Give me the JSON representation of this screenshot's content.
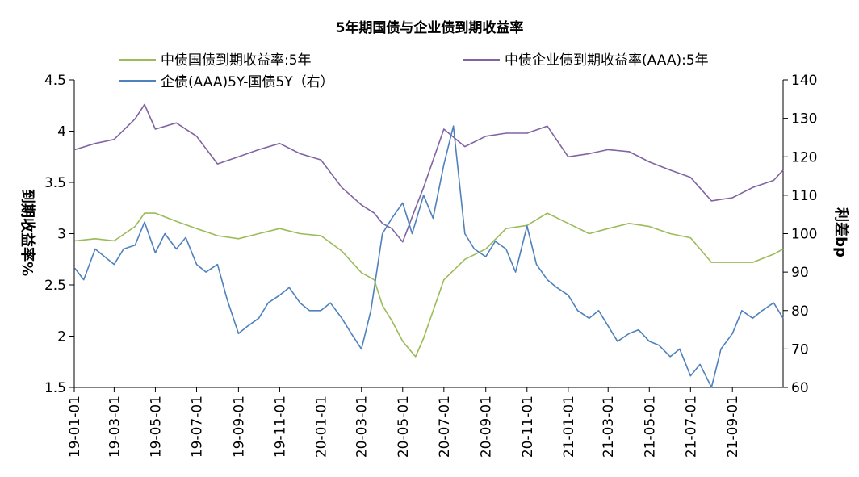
{
  "chart_data": {
    "type": "line",
    "title": "5年期国债与企业债到期收益率",
    "ylabel_left": "到期收益率%",
    "ylabel_right": "利差bp",
    "ylim_left": [
      1.5,
      4.5
    ],
    "yticks_left": [
      "1.5",
      "2",
      "2.5",
      "3",
      "3.5",
      "4",
      "4.5"
    ],
    "ylim_right": [
      60,
      140
    ],
    "yticks_right": [
      "60",
      "70",
      "80",
      "90",
      "100",
      "110",
      "120",
      "130",
      "140"
    ],
    "x_range": [
      "2019-01-01",
      "2021-11-15"
    ],
    "xticks": [
      "19-01-01",
      "19-03-01",
      "19-05-01",
      "19-07-01",
      "19-09-01",
      "19-11-01",
      "20-01-01",
      "20-03-01",
      "20-05-01",
      "20-07-01",
      "20-09-01",
      "20-11-01",
      "21-01-01",
      "21-03-01",
      "21-05-01",
      "21-07-01",
      "21-09-01"
    ],
    "legend_placement": "top",
    "grid": false,
    "series": [
      {
        "name": "中债国债到期收益率:5年",
        "axis": "left",
        "color": "#9BBB59",
        "x": [
          "2019-01-02",
          "2019-02-01",
          "2019-03-01",
          "2019-04-01",
          "2019-04-15",
          "2019-05-01",
          "2019-06-01",
          "2019-07-01",
          "2019-08-01",
          "2019-09-01",
          "2019-10-01",
          "2019-11-01",
          "2019-12-01",
          "2020-01-01",
          "2020-02-01",
          "2020-03-01",
          "2020-03-20",
          "2020-04-01",
          "2020-04-15",
          "2020-05-01",
          "2020-05-20",
          "2020-06-01",
          "2020-07-01",
          "2020-08-01",
          "2020-09-01",
          "2020-10-01",
          "2020-11-01",
          "2020-12-01",
          "2021-01-01",
          "2021-02-01",
          "2021-03-01",
          "2021-04-01",
          "2021-05-01",
          "2021-06-01",
          "2021-07-01",
          "2021-08-01",
          "2021-09-01",
          "2021-10-01",
          "2021-11-01",
          "2021-11-15"
        ],
        "values": [
          2.93,
          2.95,
          2.93,
          3.07,
          3.2,
          3.2,
          3.12,
          3.05,
          2.98,
          2.95,
          3.0,
          3.05,
          3.0,
          2.98,
          2.83,
          2.62,
          2.55,
          2.3,
          2.15,
          1.95,
          1.8,
          1.98,
          2.55,
          2.75,
          2.85,
          3.05,
          3.08,
          3.2,
          3.1,
          3.0,
          3.05,
          3.1,
          3.07,
          3.0,
          2.96,
          2.72,
          2.72,
          2.72,
          2.8,
          2.85
        ]
      },
      {
        "name": "中债企业债到期收益率(AAA):5年",
        "axis": "left",
        "color": "#8064A2",
        "x": [
          "2019-01-02",
          "2019-02-01",
          "2019-03-01",
          "2019-04-01",
          "2019-04-15",
          "2019-05-01",
          "2019-06-01",
          "2019-07-01",
          "2019-08-01",
          "2019-09-01",
          "2019-10-01",
          "2019-11-01",
          "2019-12-01",
          "2020-01-01",
          "2020-02-01",
          "2020-03-01",
          "2020-03-20",
          "2020-04-01",
          "2020-04-15",
          "2020-05-01",
          "2020-05-20",
          "2020-06-01",
          "2020-07-01",
          "2020-08-01",
          "2020-09-01",
          "2020-10-01",
          "2020-11-01",
          "2020-12-01",
          "2021-01-01",
          "2021-02-01",
          "2021-03-01",
          "2021-04-01",
          "2021-05-01",
          "2021-06-01",
          "2021-07-01",
          "2021-08-01",
          "2021-09-01",
          "2021-10-01",
          "2021-11-01",
          "2021-11-15"
        ],
        "values": [
          3.82,
          3.88,
          3.92,
          4.12,
          4.26,
          4.02,
          4.08,
          3.95,
          3.68,
          3.75,
          3.82,
          3.88,
          3.78,
          3.72,
          3.45,
          3.28,
          3.2,
          3.1,
          3.05,
          2.92,
          3.25,
          3.45,
          4.02,
          3.85,
          3.95,
          3.98,
          3.98,
          4.05,
          3.75,
          3.78,
          3.82,
          3.8,
          3.7,
          3.62,
          3.55,
          3.32,
          3.35,
          3.45,
          3.52,
          3.62
        ]
      },
      {
        "name": "企债(AAA)5Y-国债5Y（右）",
        "axis": "right",
        "color": "#4F81BD",
        "x": [
          "2019-01-02",
          "2019-01-15",
          "2019-02-01",
          "2019-03-01",
          "2019-03-15",
          "2019-04-01",
          "2019-04-15",
          "2019-05-01",
          "2019-05-15",
          "2019-06-01",
          "2019-06-15",
          "2019-07-01",
          "2019-07-15",
          "2019-08-01",
          "2019-08-15",
          "2019-09-01",
          "2019-09-15",
          "2019-10-01",
          "2019-10-15",
          "2019-11-01",
          "2019-11-15",
          "2019-12-01",
          "2019-12-15",
          "2020-01-01",
          "2020-01-15",
          "2020-02-01",
          "2020-02-15",
          "2020-03-01",
          "2020-03-15",
          "2020-04-01",
          "2020-04-15",
          "2020-05-01",
          "2020-05-15",
          "2020-06-01",
          "2020-06-15",
          "2020-07-01",
          "2020-07-15",
          "2020-08-01",
          "2020-08-15",
          "2020-09-01",
          "2020-09-15",
          "2020-10-01",
          "2020-10-15",
          "2020-11-01",
          "2020-11-15",
          "2020-12-01",
          "2020-12-15",
          "2021-01-01",
          "2021-01-15",
          "2021-02-01",
          "2021-02-15",
          "2021-03-01",
          "2021-03-15",
          "2021-04-01",
          "2021-04-15",
          "2021-05-01",
          "2021-05-15",
          "2021-06-01",
          "2021-06-15",
          "2021-07-01",
          "2021-07-15",
          "2021-08-01",
          "2021-08-15",
          "2021-09-01",
          "2021-09-15",
          "2021-10-01",
          "2021-10-15",
          "2021-11-01",
          "2021-11-15"
        ],
        "values": [
          91,
          88,
          96,
          92,
          96,
          97,
          103,
          95,
          100,
          96,
          99,
          92,
          90,
          92,
          83,
          74,
          76,
          78,
          82,
          84,
          86,
          82,
          80,
          80,
          82,
          78,
          74,
          70,
          80,
          100,
          104,
          108,
          100,
          110,
          104,
          118,
          128,
          100,
          96,
          94,
          98,
          96,
          90,
          102,
          92,
          88,
          86,
          84,
          80,
          78,
          80,
          76,
          72,
          74,
          75,
          72,
          71,
          68,
          70,
          63,
          66,
          60,
          70,
          74,
          80,
          78,
          80,
          82,
          78
        ]
      }
    ]
  }
}
